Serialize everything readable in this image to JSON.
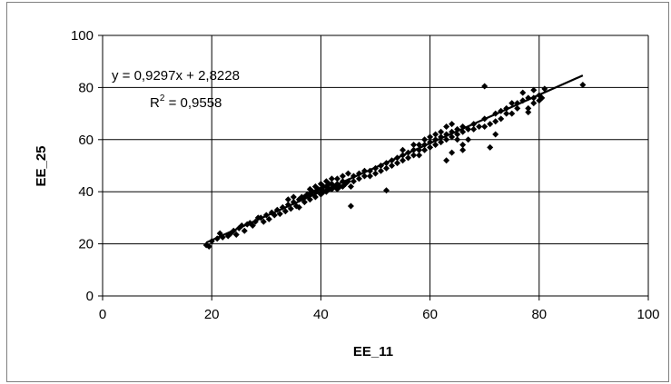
{
  "chart_data": {
    "type": "scatter",
    "title": "",
    "xlabel": "EE_11",
    "ylabel": "EE_25",
    "xlim": [
      0,
      100
    ],
    "ylim": [
      0,
      100
    ],
    "x_ticks": [
      0,
      20,
      40,
      60,
      80,
      100
    ],
    "y_ticks": [
      0,
      20,
      40,
      60,
      80,
      100
    ],
    "grid": true,
    "legend": "none",
    "marker": "diamond",
    "marker_color": "#000000",
    "trendline": {
      "type": "linear",
      "slope": 0.9297,
      "intercept": 2.8228,
      "x_range": [
        19,
        88
      ],
      "equation_label": "y = 0,9297x + 2,8228",
      "r2_prefix": "R",
      "r2_exponent": "2",
      "r2_value": " = 0,9558"
    },
    "series": [
      {
        "points": [
          [
            19,
            19.5
          ],
          [
            19.5,
            19
          ],
          [
            20,
            21
          ],
          [
            21,
            22
          ],
          [
            21.5,
            24
          ],
          [
            22,
            22.5
          ],
          [
            23,
            23
          ],
          [
            23.5,
            24
          ],
          [
            24,
            25
          ],
          [
            24.5,
            23.5
          ],
          [
            25,
            26
          ],
          [
            25.5,
            27
          ],
          [
            26,
            25
          ],
          [
            26.5,
            27.5
          ],
          [
            27,
            28
          ],
          [
            27.5,
            27
          ],
          [
            28,
            28.5
          ],
          [
            28.5,
            30
          ],
          [
            29,
            30
          ],
          [
            29.5,
            28.5
          ],
          [
            30,
            31
          ],
          [
            30.5,
            29.5
          ],
          [
            31,
            32
          ],
          [
            31.5,
            31
          ],
          [
            32,
            33
          ],
          [
            32.5,
            31.5
          ],
          [
            33,
            34
          ],
          [
            33.5,
            32.5
          ],
          [
            34,
            35
          ],
          [
            34,
            37
          ],
          [
            34.5,
            33.5
          ],
          [
            35,
            36
          ],
          [
            35,
            38
          ],
          [
            35.5,
            34.5
          ],
          [
            36,
            37
          ],
          [
            36,
            34
          ],
          [
            36.5,
            38
          ],
          [
            37,
            38
          ],
          [
            37,
            36
          ],
          [
            37.5,
            39
          ],
          [
            38,
            39
          ],
          [
            38,
            37
          ],
          [
            38,
            41
          ],
          [
            38.5,
            40
          ],
          [
            39,
            40
          ],
          [
            39,
            38
          ],
          [
            39,
            42
          ],
          [
            39.5,
            41
          ],
          [
            40,
            41
          ],
          [
            40,
            39
          ],
          [
            40,
            43
          ],
          [
            40.5,
            40
          ],
          [
            40.5,
            42
          ],
          [
            41,
            42
          ],
          [
            41,
            40
          ],
          [
            41,
            44
          ],
          [
            41.5,
            41
          ],
          [
            41.5,
            43
          ],
          [
            42,
            43
          ],
          [
            42,
            41
          ],
          [
            42,
            45
          ],
          [
            42.5,
            42
          ],
          [
            43,
            43
          ],
          [
            43,
            41
          ],
          [
            43,
            45
          ],
          [
            43.5,
            42
          ],
          [
            44,
            44
          ],
          [
            44,
            42
          ],
          [
            44,
            46
          ],
          [
            44.5,
            43
          ],
          [
            45,
            44
          ],
          [
            45,
            47
          ],
          [
            45.5,
            34.5
          ],
          [
            45.5,
            42
          ],
          [
            46,
            44
          ],
          [
            46,
            46
          ],
          [
            47,
            45
          ],
          [
            47,
            47
          ],
          [
            48,
            46
          ],
          [
            48,
            48
          ],
          [
            49,
            46
          ],
          [
            49,
            48
          ],
          [
            50,
            47
          ],
          [
            50,
            49
          ],
          [
            51,
            48
          ],
          [
            51,
            50
          ],
          [
            52,
            49
          ],
          [
            52,
            51
          ],
          [
            52,
            40.5
          ],
          [
            53,
            50
          ],
          [
            53,
            52
          ],
          [
            54,
            51
          ],
          [
            54,
            53
          ],
          [
            55,
            52
          ],
          [
            55,
            54
          ],
          [
            55,
            56
          ],
          [
            56,
            53
          ],
          [
            56,
            55
          ],
          [
            57,
            54
          ],
          [
            57,
            56
          ],
          [
            57,
            58
          ],
          [
            58,
            54
          ],
          [
            58,
            56
          ],
          [
            58,
            58
          ],
          [
            59,
            56
          ],
          [
            59,
            58
          ],
          [
            59,
            60
          ],
          [
            60,
            57
          ],
          [
            60,
            59
          ],
          [
            60,
            61
          ],
          [
            61,
            58
          ],
          [
            61,
            60
          ],
          [
            61,
            62
          ],
          [
            62,
            59
          ],
          [
            62,
            61
          ],
          [
            62,
            63
          ],
          [
            63,
            52
          ],
          [
            63,
            60
          ],
          [
            63,
            62
          ],
          [
            63,
            65
          ],
          [
            64,
            55
          ],
          [
            64,
            61
          ],
          [
            64,
            63
          ],
          [
            64,
            66
          ],
          [
            65,
            60
          ],
          [
            65,
            62
          ],
          [
            65,
            64
          ],
          [
            66,
            56
          ],
          [
            66,
            58
          ],
          [
            66,
            63
          ],
          [
            66,
            65
          ],
          [
            67,
            60
          ],
          [
            67,
            64
          ],
          [
            68,
            64
          ],
          [
            68,
            66
          ],
          [
            69,
            65
          ],
          [
            70,
            65
          ],
          [
            70,
            80.5
          ],
          [
            70,
            68
          ],
          [
            71,
            66
          ],
          [
            71,
            57
          ],
          [
            72,
            67
          ],
          [
            72,
            70
          ],
          [
            72,
            62
          ],
          [
            73,
            68
          ],
          [
            73,
            71
          ],
          [
            74,
            70
          ],
          [
            74,
            72
          ],
          [
            75,
            70
          ],
          [
            75,
            74
          ],
          [
            76,
            72
          ],
          [
            76,
            74
          ],
          [
            77,
            75
          ],
          [
            77,
            78
          ],
          [
            78,
            72
          ],
          [
            78,
            76
          ],
          [
            78,
            70.5
          ],
          [
            79,
            76
          ],
          [
            79,
            74
          ],
          [
            79,
            79
          ],
          [
            80,
            75
          ],
          [
            80,
            77
          ],
          [
            80.5,
            76
          ],
          [
            81,
            79.5
          ],
          [
            88,
            81
          ]
        ]
      }
    ]
  }
}
